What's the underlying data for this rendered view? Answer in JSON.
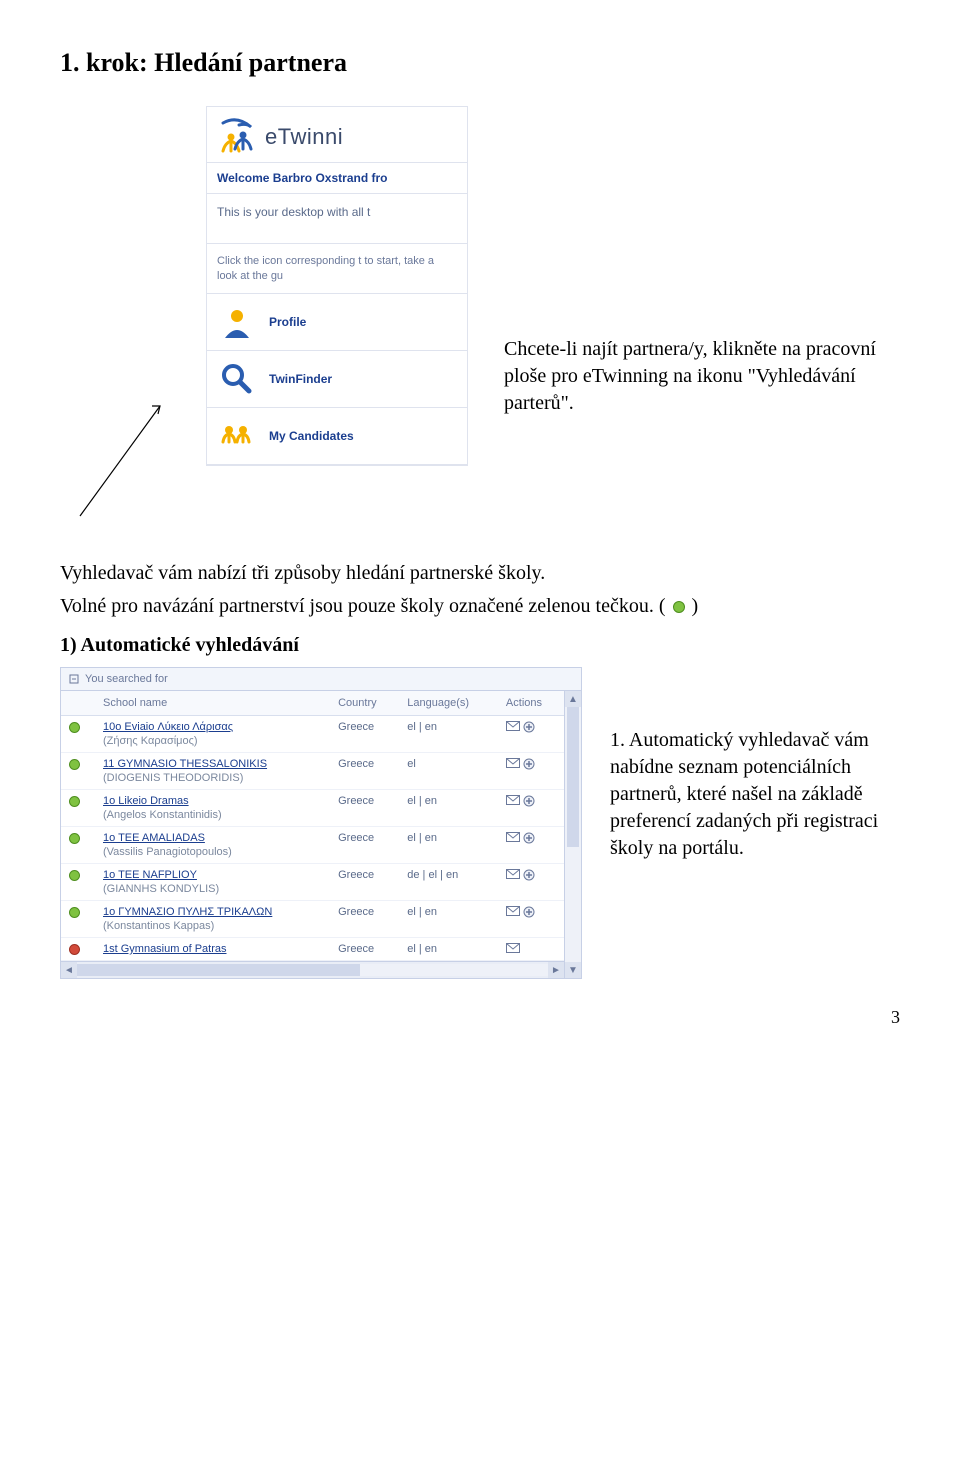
{
  "heading": "1. krok: Hledání partnera",
  "intro_para": "Chcete-li najít partnera/y, klikněte na pracovní ploše pro eTwinning na ikonu \"Vyhledávání parterů\".",
  "sidebar": {
    "brand": "eTwinni",
    "welcome": "Welcome Barbro Oxstrand fro",
    "intro": "This is your desktop with all t",
    "hint": "Click the icon corresponding t\nto start, take a look at the gu",
    "items": [
      {
        "label": "Profile",
        "icon": "profile"
      },
      {
        "label": "TwinFinder",
        "icon": "finder"
      },
      {
        "label": "My Candidates",
        "icon": "candidates"
      }
    ]
  },
  "body_p1": "Vyhledavač vám nabízí tři způsoby hledání partnerské školy.",
  "body_p2_pre": "Volné pro navázání partnerství jsou pouze školy označené zelenou tečkou. ( ",
  "body_p2_post": " )",
  "subheading": "1) Automatické vyhledávání",
  "results": {
    "searched_label": "You searched for",
    "columns": [
      "School name",
      "Country",
      "Language(s)",
      "Actions"
    ],
    "rows": [
      {
        "status": "green",
        "name": "10o Eviaio Λύκειο Λάρισας",
        "sub": "(Ζήσης Καρασίμος)",
        "country": "Greece",
        "langs": "el | en"
      },
      {
        "status": "green",
        "name": "11 GYMNASIO THESSALONIKIS",
        "sub": "(DIOGENIS THEODORIDIS)",
        "country": "Greece",
        "langs": "el"
      },
      {
        "status": "green",
        "name": "1o Likeio Dramas",
        "sub": "(Angelos Konstantinidis)",
        "country": "Greece",
        "langs": "el | en"
      },
      {
        "status": "green",
        "name": "1o TEE AMALIADAS",
        "sub": "(Vassilis Panagiotopoulos)",
        "country": "Greece",
        "langs": "el | en"
      },
      {
        "status": "green",
        "name": "1o TEE NAFPLIOY",
        "sub": "(GIANNHS KONDYLIS)",
        "country": "Greece",
        "langs": "de | el | en"
      },
      {
        "status": "green",
        "name": "1o ΓΥΜΝΑΣΙΟ ΠΥΛΗΣ ΤΡΙΚΑΛΩΝ",
        "sub": "(Konstantinos Kappas)",
        "country": "Greece",
        "langs": "el | en"
      },
      {
        "status": "red",
        "name": "1st Gymnasium of Patras",
        "sub": "",
        "country": "Greece",
        "langs": "el | en"
      }
    ]
  },
  "results_para": "1. Automatický vyhledavač vám nabídne seznam potenciálních partnerů, které našel na základě preferencí zadaných při registraci školy na portálu.",
  "page_number": "3",
  "colors": {
    "link": "#1b3e8f",
    "muted": "#6a789a",
    "border": "#c7d0e6",
    "green": "#7fc241",
    "red": "#d24a3a"
  }
}
